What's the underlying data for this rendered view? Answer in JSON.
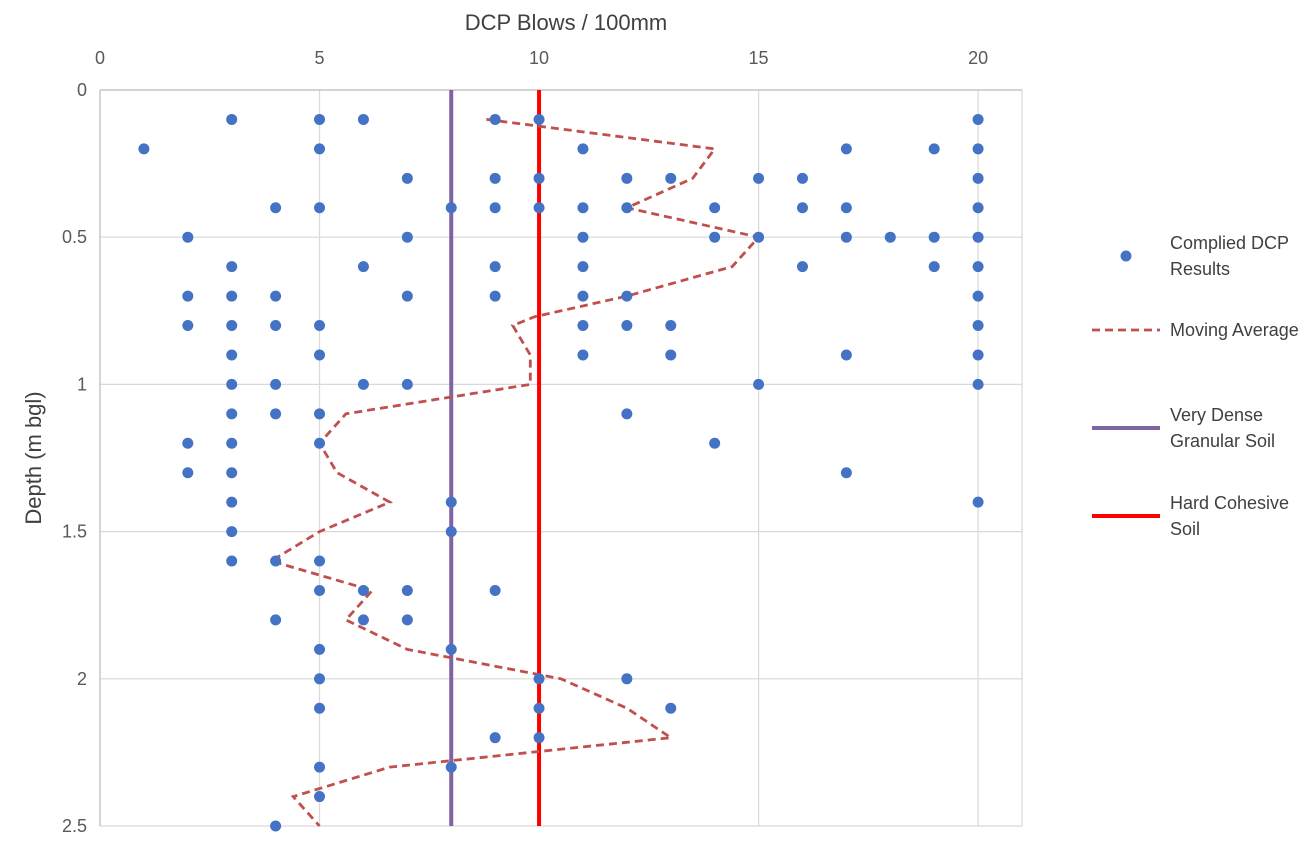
{
  "chart_data": {
    "type": "scatter",
    "xlabel": "DCP Blows / 100mm",
    "ylabel": "Depth (m bgl)",
    "xlim": [
      0,
      21
    ],
    "ylim": [
      0,
      2.5
    ],
    "y_reversed": true,
    "x_axis_position": "top",
    "x_ticks": [
      "0",
      "5",
      "10",
      "15",
      "20"
    ],
    "y_ticks": [
      "0",
      "0.5",
      "1",
      "1.5",
      "2",
      "2.5"
    ],
    "grid": true,
    "legend_position": "right",
    "series": [
      {
        "name": "Complied DCP Results",
        "kind": "scatter",
        "color": "#4472C4",
        "points": [
          [
            3,
            0.1
          ],
          [
            5,
            0.1
          ],
          [
            6,
            0.1
          ],
          [
            9,
            0.1
          ],
          [
            10,
            0.1
          ],
          [
            20,
            0.1
          ],
          [
            1,
            0.2
          ],
          [
            5,
            0.2
          ],
          [
            11,
            0.2
          ],
          [
            17,
            0.2
          ],
          [
            19,
            0.2
          ],
          [
            20,
            0.2
          ],
          [
            7,
            0.3
          ],
          [
            9,
            0.3
          ],
          [
            10,
            0.3
          ],
          [
            12,
            0.3
          ],
          [
            13,
            0.3
          ],
          [
            15,
            0.3
          ],
          [
            16,
            0.3
          ],
          [
            20,
            0.3
          ],
          [
            4,
            0.4
          ],
          [
            5,
            0.4
          ],
          [
            8,
            0.4
          ],
          [
            9,
            0.4
          ],
          [
            10,
            0.4
          ],
          [
            11,
            0.4
          ],
          [
            12,
            0.4
          ],
          [
            14,
            0.4
          ],
          [
            16,
            0.4
          ],
          [
            17,
            0.4
          ],
          [
            20,
            0.4
          ],
          [
            2,
            0.5
          ],
          [
            7,
            0.5
          ],
          [
            11,
            0.5
          ],
          [
            14,
            0.5
          ],
          [
            15,
            0.5
          ],
          [
            17,
            0.5
          ],
          [
            18,
            0.5
          ],
          [
            19,
            0.5
          ],
          [
            20,
            0.5
          ],
          [
            3,
            0.6
          ],
          [
            6,
            0.6
          ],
          [
            9,
            0.6
          ],
          [
            11,
            0.6
          ],
          [
            16,
            0.6
          ],
          [
            19,
            0.6
          ],
          [
            20,
            0.6
          ],
          [
            2,
            0.7
          ],
          [
            3,
            0.7
          ],
          [
            4,
            0.7
          ],
          [
            7,
            0.7
          ],
          [
            9,
            0.7
          ],
          [
            11,
            0.7
          ],
          [
            12,
            0.7
          ],
          [
            20,
            0.7
          ],
          [
            2,
            0.8
          ],
          [
            3,
            0.8
          ],
          [
            4,
            0.8
          ],
          [
            5,
            0.8
          ],
          [
            11,
            0.8
          ],
          [
            12,
            0.8
          ],
          [
            13,
            0.8
          ],
          [
            20,
            0.8
          ],
          [
            3,
            0.9
          ],
          [
            5,
            0.9
          ],
          [
            11,
            0.9
          ],
          [
            13,
            0.9
          ],
          [
            17,
            0.9
          ],
          [
            20,
            0.9
          ],
          [
            3,
            1.0
          ],
          [
            4,
            1.0
          ],
          [
            6,
            1.0
          ],
          [
            7,
            1.0
          ],
          [
            15,
            1.0
          ],
          [
            20,
            1.0
          ],
          [
            3,
            1.1
          ],
          [
            4,
            1.1
          ],
          [
            5,
            1.1
          ],
          [
            12,
            1.1
          ],
          [
            2,
            1.2
          ],
          [
            3,
            1.2
          ],
          [
            5,
            1.2
          ],
          [
            14,
            1.2
          ],
          [
            2,
            1.3
          ],
          [
            3,
            1.3
          ],
          [
            17,
            1.3
          ],
          [
            3,
            1.4
          ],
          [
            8,
            1.4
          ],
          [
            20,
            1.4
          ],
          [
            3,
            1.5
          ],
          [
            8,
            1.5
          ],
          [
            3,
            1.6
          ],
          [
            4,
            1.6
          ],
          [
            5,
            1.6
          ],
          [
            5,
            1.7
          ],
          [
            6,
            1.7
          ],
          [
            7,
            1.7
          ],
          [
            9,
            1.7
          ],
          [
            4,
            1.8
          ],
          [
            6,
            1.8
          ],
          [
            7,
            1.8
          ],
          [
            5,
            1.9
          ],
          [
            8,
            1.9
          ],
          [
            5,
            2.0
          ],
          [
            10,
            2.0
          ],
          [
            12,
            2.0
          ],
          [
            5,
            2.1
          ],
          [
            10,
            2.1
          ],
          [
            13,
            2.1
          ],
          [
            9,
            2.2
          ],
          [
            10,
            2.2
          ],
          [
            5,
            2.3
          ],
          [
            8,
            2.3
          ],
          [
            5,
            2.4
          ],
          [
            4,
            2.5
          ]
        ]
      },
      {
        "name": "Moving Average",
        "kind": "line",
        "style": "dashed",
        "color": "#C0504D",
        "points": [
          [
            8.8,
            0.1
          ],
          [
            14,
            0.2
          ],
          [
            13.5,
            0.3
          ],
          [
            12,
            0.4
          ],
          [
            15,
            0.5
          ],
          [
            14.4,
            0.6
          ],
          [
            12,
            0.7
          ],
          [
            9.9,
            0.77
          ],
          [
            9.4,
            0.8
          ],
          [
            9.8,
            0.9
          ],
          [
            9.8,
            1.0
          ],
          [
            5.6,
            1.1
          ],
          [
            5.0,
            1.2
          ],
          [
            5.4,
            1.3
          ],
          [
            6.6,
            1.4
          ],
          [
            5.0,
            1.5
          ],
          [
            3.9,
            1.6
          ],
          [
            6.2,
            1.7
          ],
          [
            5.6,
            1.8
          ],
          [
            7.0,
            1.9
          ],
          [
            10.5,
            2.0
          ],
          [
            12.0,
            2.1
          ],
          [
            13.0,
            2.2
          ],
          [
            6.6,
            2.3
          ],
          [
            4.4,
            2.4
          ],
          [
            5.0,
            2.5
          ]
        ]
      },
      {
        "name": "Very Dense Granular Soil",
        "kind": "vline",
        "color": "#8064A2",
        "x": 8
      },
      {
        "name": "Hard Cohesive Soil",
        "kind": "vline",
        "color": "#FF0000",
        "x": 10
      }
    ],
    "legend": [
      {
        "series": 0,
        "lines": [
          "Complied DCP",
          "Results"
        ]
      },
      {
        "series": 1,
        "lines": [
          "Moving Average"
        ]
      },
      {
        "series": 2,
        "lines": [
          "Very Dense",
          "Granular Soil"
        ]
      },
      {
        "series": 3,
        "lines": [
          "Hard Cohesive",
          "Soil"
        ]
      }
    ]
  }
}
